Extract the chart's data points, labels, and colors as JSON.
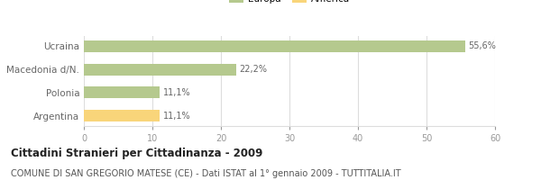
{
  "categories": [
    "Ucraina",
    "Macedonia d/N.",
    "Polonia",
    "Argentina"
  ],
  "values": [
    55.6,
    22.2,
    11.1,
    11.1
  ],
  "labels": [
    "55,6%",
    "22,2%",
    "11,1%",
    "11,1%"
  ],
  "bar_colors": [
    "#b5c98e",
    "#b5c98e",
    "#b5c98e",
    "#f9d57a"
  ],
  "legend_colors": {
    "Europa": "#b5c98e",
    "America": "#f9d57a"
  },
  "xlim": [
    0,
    60
  ],
  "xticks": [
    0,
    10,
    20,
    30,
    40,
    50,
    60
  ],
  "title": "Cittadini Stranieri per Cittadinanza - 2009",
  "subtitle": "COMUNE DI SAN GREGORIO MATESE (CE) - Dati ISTAT al 1° gennaio 2009 - TUTTITALIA.IT",
  "title_fontsize": 8.5,
  "subtitle_fontsize": 7,
  "background_color": "#ffffff",
  "bar_height": 0.5,
  "grid_color": "#dddddd",
  "label_color": "#666666",
  "tick_color": "#999999"
}
